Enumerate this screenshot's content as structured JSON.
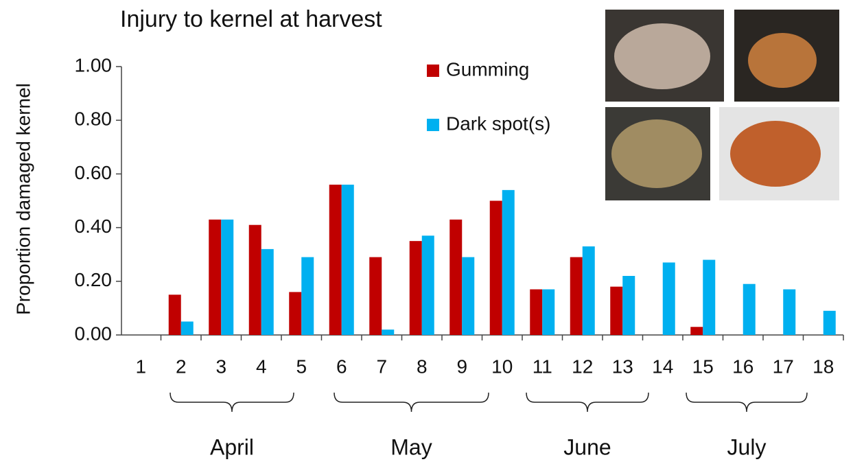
{
  "chart_data": {
    "type": "bar",
    "title": "Injury to kernel at harvest",
    "y_label": "Proportion damaged kernel",
    "categories": [
      "1",
      "2",
      "3",
      "4",
      "5",
      "6",
      "7",
      "8",
      "9",
      "10",
      "11",
      "12",
      "13",
      "14",
      "15",
      "16",
      "17",
      "18"
    ],
    "series": [
      {
        "name": "Gumming",
        "color": "#c00000",
        "values": [
          0,
          0.15,
          0.43,
          0.41,
          0.16,
          0.56,
          0.29,
          0.35,
          0.43,
          0.5,
          0.17,
          0.29,
          0.18,
          0,
          0.03,
          0,
          0,
          0
        ]
      },
      {
        "name": "Dark spot(s)",
        "color": "#00b0f0",
        "values": [
          0,
          0.05,
          0.43,
          0.32,
          0.29,
          0.56,
          0.02,
          0.37,
          0.29,
          0.54,
          0.17,
          0.33,
          0.22,
          0.27,
          0.28,
          0.19,
          0.17,
          0.09
        ]
      }
    ],
    "annotations": [
      "April",
      "May",
      "June",
      "July"
    ],
    "ylim": [
      0,
      1
    ],
    "yticks": [
      {
        "value": 0,
        "label": "0.00"
      },
      {
        "value": 0.2,
        "label": "0.20"
      },
      {
        "value": 0.4,
        "label": "0.40"
      },
      {
        "value": 0.6,
        "label": "0.60"
      },
      {
        "value": 0.8,
        "label": "0.80"
      },
      {
        "value": 1,
        "label": "1.00"
      }
    ],
    "grid": false
  }
}
